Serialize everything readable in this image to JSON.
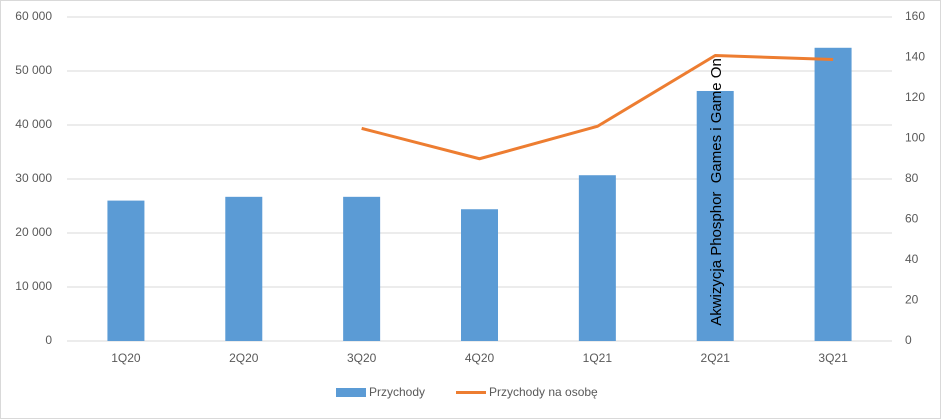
{
  "chart_data": {
    "type": "bar-line",
    "categories": [
      "1Q20",
      "2Q20",
      "3Q20",
      "4Q20",
      "1Q21",
      "2Q21",
      "3Q21"
    ],
    "series": [
      {
        "name": "Przychody",
        "type": "bar",
        "color": "#5b9bd5",
        "values": [
          26000,
          26700,
          26700,
          24400,
          30700,
          46300,
          54300
        ]
      },
      {
        "name": "Przychody na osobę",
        "type": "line",
        "axis": "y2",
        "color": "#ed7d31",
        "values": [
          null,
          null,
          105,
          90,
          106,
          141,
          139
        ]
      }
    ],
    "ylim": [
      0,
      60000
    ],
    "yticks": [
      0,
      {
        "value": 10000,
        "label": "10 000"
      },
      {
        "value": 20000,
        "label": "20 000"
      },
      {
        "value": 30000,
        "label": "30 000"
      },
      {
        "value": 40000,
        "label": "40 000"
      },
      {
        "value": 50000,
        "label": "50 000"
      },
      {
        "value": 60000,
        "label": "60 000"
      }
    ],
    "y2lim": [
      0,
      160
    ],
    "y2ticks": [
      0,
      20,
      40,
      60,
      80,
      100,
      120,
      140,
      160
    ],
    "grid": true,
    "legend": "bottom",
    "annotation": "Akwizycja Phosphor  Games i Game On"
  }
}
